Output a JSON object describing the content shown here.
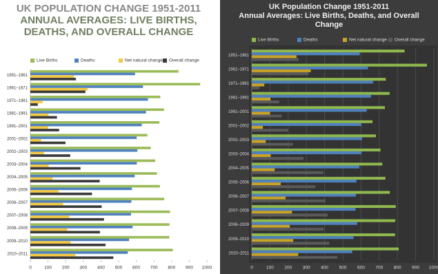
{
  "chart_data": [
    {
      "type": "bar",
      "orientation": "horizontal",
      "theme": "light",
      "title": "UK POPULATION CHANGE 1951-2011",
      "subtitle": "ANNUAL AVERAGES: LIVE BIRTHS, DEATHS, AND OVERALL CHANGE",
      "categories": [
        "1951–1961",
        "1961–1971",
        "1971–1981",
        "1981–1991",
        "1991–2001",
        "2001–2002",
        "2002–2003",
        "2003–2004",
        "2004–2005",
        "2005–2006",
        "2006–2007",
        "2007–2008",
        "2008–2009",
        "2009–2010",
        "2010–2011"
      ],
      "series": [
        {
          "name": "Live Births",
          "color": "#9bbb59",
          "values": [
            839,
            962,
            736,
            757,
            731,
            663,
            682,
            707,
            717,
            734,
            758,
            791,
            788,
            787,
            807
          ]
        },
        {
          "name": "Deaths",
          "color": "#4f81bd",
          "values": [
            593,
            638,
            666,
            655,
            631,
            602,
            606,
            603,
            591,
            575,
            572,
            570,
            579,
            559,
            552
          ]
        },
        {
          "name": "Net natural change",
          "color": "#f5c842",
          "values": [
            246,
            324,
            69,
            103,
            100,
            61,
            77,
            104,
            126,
            159,
            186,
            221,
            209,
            228,
            255
          ]
        },
        {
          "name": "Overall change",
          "color": "#3a3a3a",
          "values": [
            258,
            312,
            42,
            151,
            163,
            199,
            226,
            284,
            393,
            349,
            404,
            417,
            394,
            426,
            470
          ]
        }
      ],
      "xlim": [
        0,
        1000
      ],
      "xticks": [
        0,
        100,
        200,
        300,
        400,
        500,
        600,
        700,
        800,
        900,
        1000
      ],
      "grid": false
    },
    {
      "type": "bar",
      "orientation": "horizontal",
      "theme": "dark",
      "title": "UK Population Change 1951-2011",
      "subtitle": "Annual Averages: Live Births, Deaths, and Overall Change",
      "categories": [
        "1951–1961",
        "1961–1971",
        "1971–1981",
        "1981–1991",
        "1991–2001",
        "2001–2002",
        "2002–2003",
        "2003–2004",
        "2004–2005",
        "2005–2006",
        "2006–2007",
        "2007–2008",
        "2008–2009",
        "2009–2010",
        "2010–2011"
      ],
      "series": [
        {
          "name": "Live Births",
          "color": "#8fb84e",
          "values": [
            839,
            962,
            736,
            757,
            731,
            663,
            682,
            707,
            717,
            734,
            758,
            791,
            788,
            787,
            807
          ]
        },
        {
          "name": "Deaths",
          "color": "#4f81bd",
          "values": [
            593,
            638,
            666,
            655,
            631,
            602,
            606,
            603,
            591,
            575,
            572,
            570,
            579,
            559,
            552
          ]
        },
        {
          "name": "Net natural change",
          "color": "#c9a227",
          "values": [
            246,
            324,
            69,
            103,
            100,
            61,
            77,
            104,
            126,
            159,
            186,
            221,
            209,
            228,
            255
          ]
        },
        {
          "name": "Overall change",
          "color": "#5a5a5a",
          "values": [
            258,
            312,
            42,
            151,
            163,
            199,
            226,
            284,
            393,
            349,
            404,
            417,
            394,
            426,
            470
          ]
        }
      ],
      "xlim": [
        0,
        1000
      ],
      "xticks": [
        0,
        100,
        200,
        300,
        400,
        500,
        600,
        700,
        800,
        900,
        1000
      ],
      "grid": true
    }
  ]
}
